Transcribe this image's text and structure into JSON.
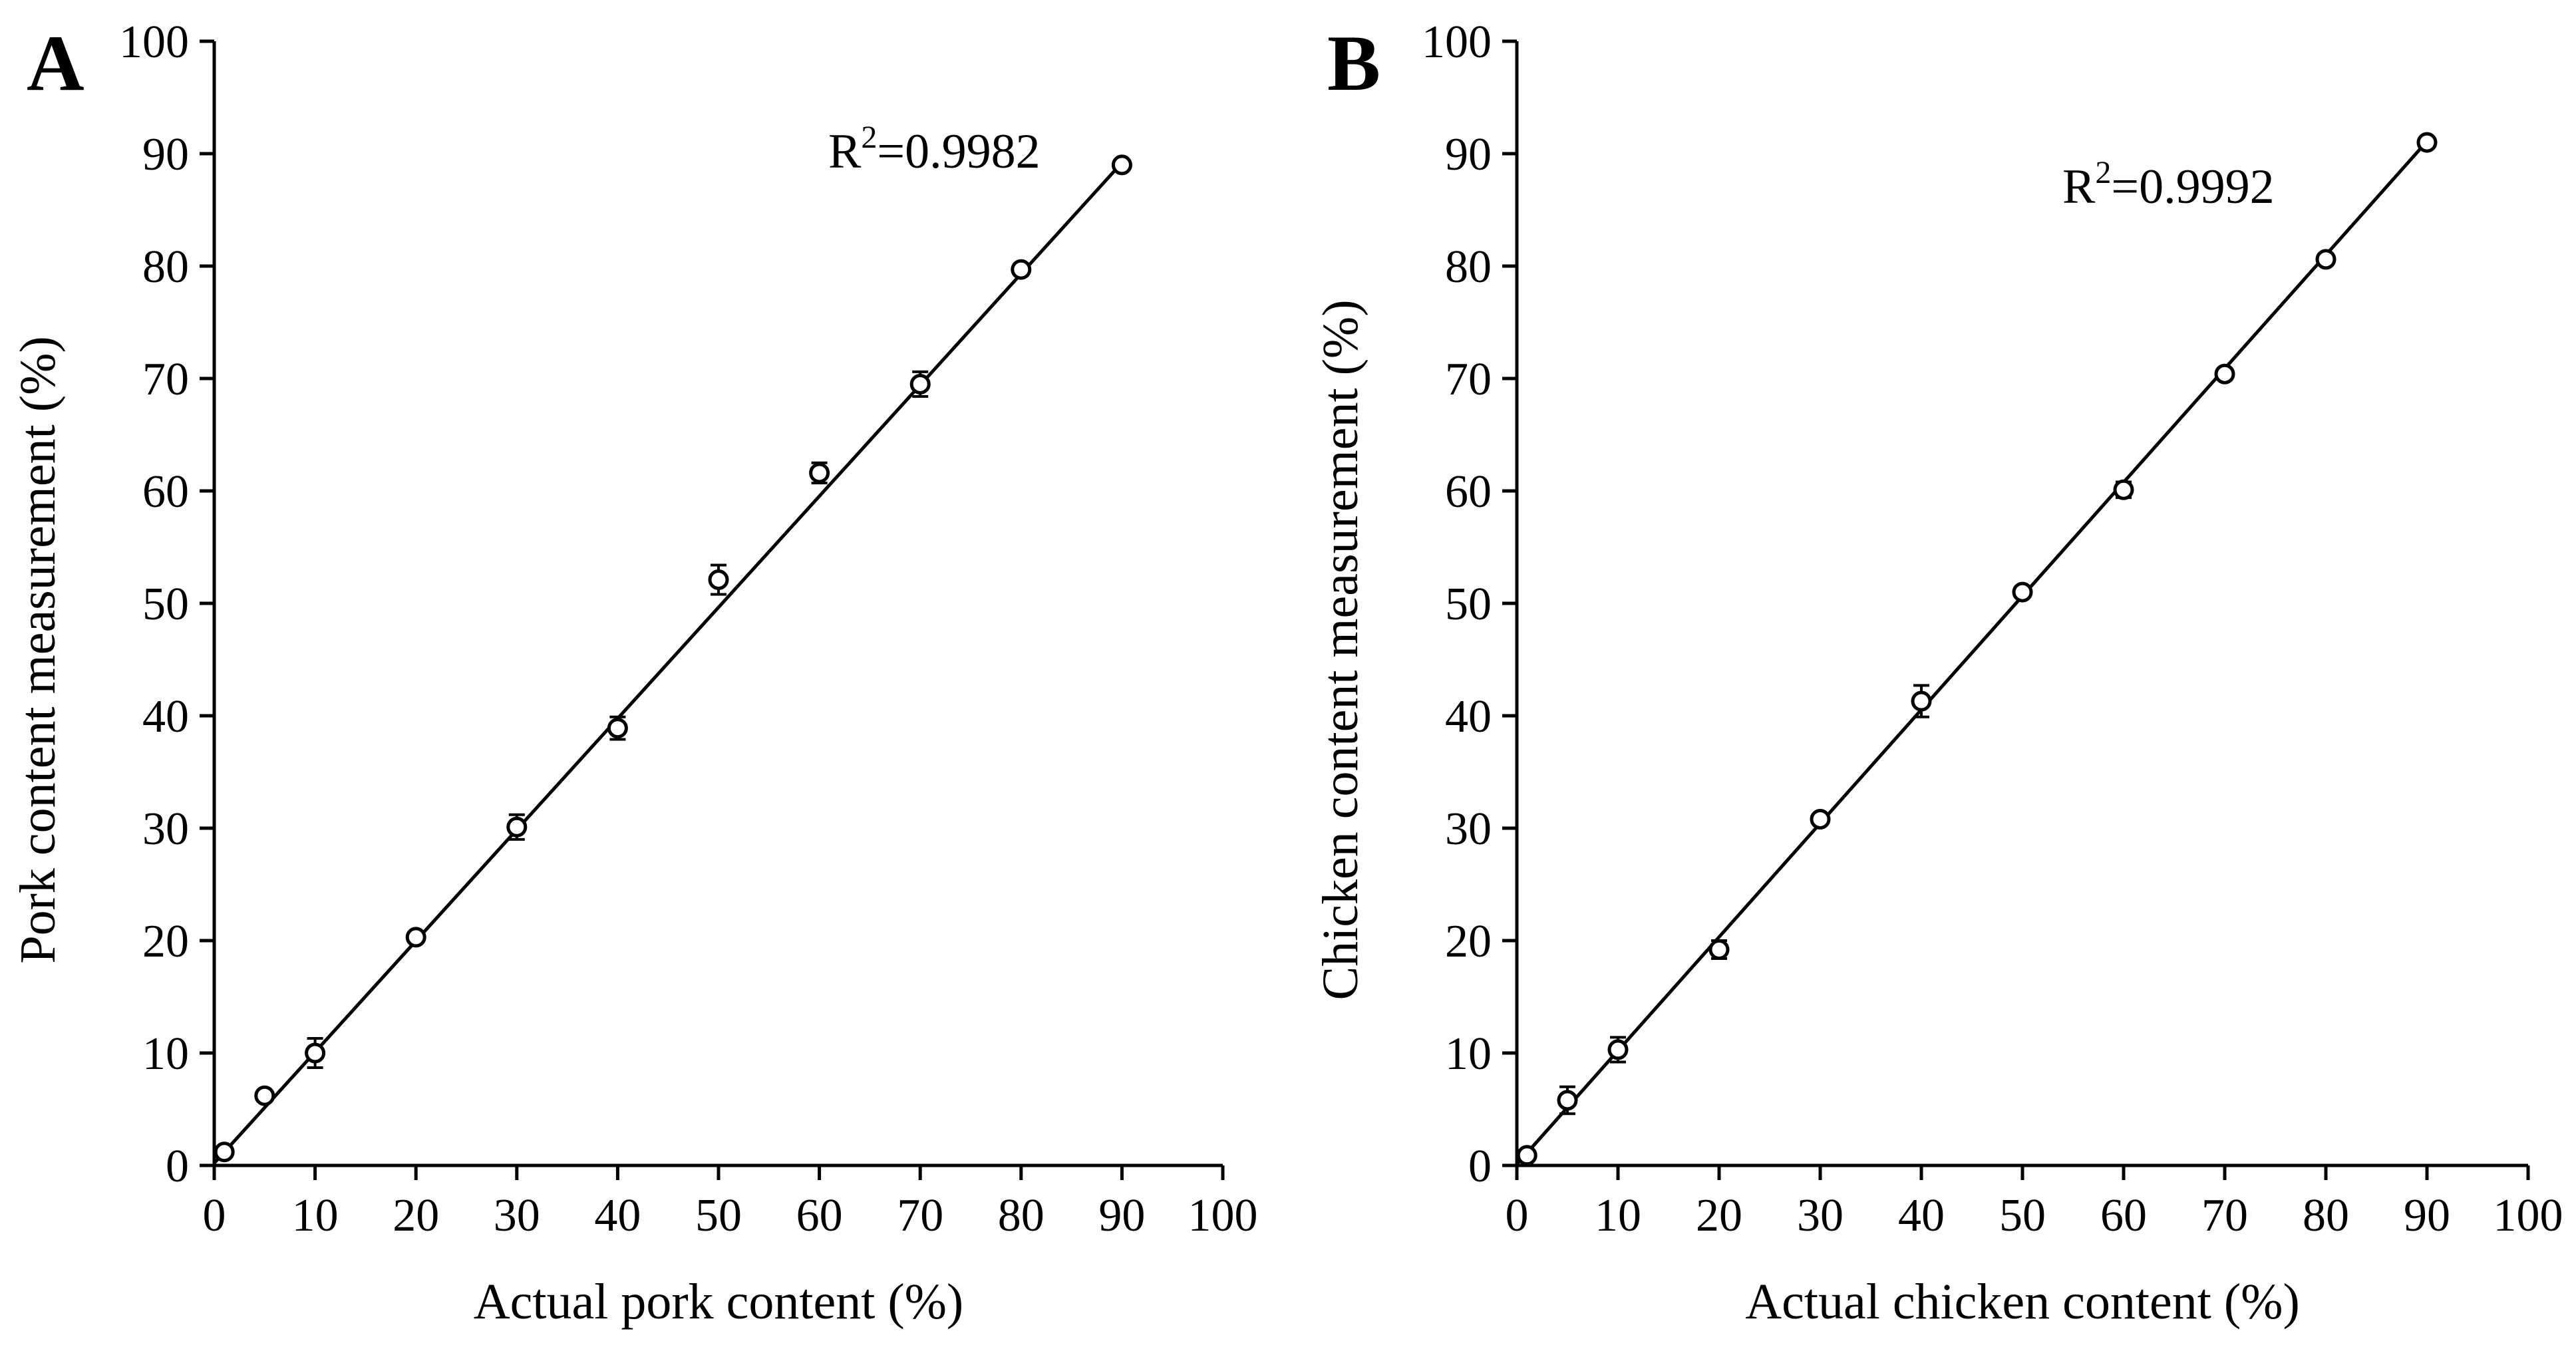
{
  "chart_data": [
    {
      "type": "scatter",
      "panel_label": "A",
      "xlabel": "Actual pork content (%)",
      "ylabel": "Pork content measurement (%)",
      "xlim": [
        0,
        100
      ],
      "ylim": [
        0,
        100
      ],
      "xticks": [
        "0",
        "10",
        "20",
        "30",
        "40",
        "50",
        "60",
        "70",
        "80",
        "90",
        "100"
      ],
      "yticks": [
        "0",
        "10",
        "20",
        "30",
        "40",
        "50",
        "60",
        "70",
        "80",
        "90",
        "100"
      ],
      "x": [
        1,
        5,
        10,
        20,
        30,
        40,
        50,
        60,
        70,
        80,
        90
      ],
      "y": [
        1.2,
        6.2,
        10.0,
        20.3,
        30.1,
        38.9,
        52.1,
        61.6,
        69.5,
        79.7,
        89.0
      ],
      "error": [
        0.3,
        0.3,
        1.3,
        0.4,
        1.1,
        1.0,
        1.3,
        0.9,
        1.1,
        0.5,
        0.3
      ],
      "fit_line": {
        "x": [
          0,
          90
        ],
        "y": [
          0.2,
          89.2
        ]
      },
      "annotation": {
        "prefix": "R",
        "superscript": "2",
        "value": "=0.9982"
      }
    },
    {
      "type": "scatter",
      "panel_label": "B",
      "xlabel": "Actual chicken content (%)",
      "ylabel": "Chicken content measurement (%)",
      "xlim": [
        0,
        100
      ],
      "ylim": [
        0,
        100
      ],
      "xticks": [
        "0",
        "10",
        "20",
        "30",
        "40",
        "50",
        "60",
        "70",
        "80",
        "90",
        "100"
      ],
      "yticks": [
        "0",
        "10",
        "20",
        "30",
        "40",
        "50",
        "60",
        "70",
        "80",
        "90",
        "100"
      ],
      "x": [
        1,
        5,
        10,
        20,
        30,
        40,
        50,
        60,
        70,
        80,
        90
      ],
      "y": [
        0.9,
        5.8,
        10.3,
        19.2,
        30.8,
        41.3,
        51.0,
        60.1,
        70.4,
        80.6,
        91.0
      ],
      "error": [
        0.3,
        1.2,
        1.1,
        0.8,
        0.4,
        1.4,
        0.3,
        0.7,
        0.3,
        0.3,
        0.3
      ],
      "fit_line": {
        "x": [
          0,
          90
        ],
        "y": [
          0.1,
          91.1
        ]
      },
      "annotation": {
        "prefix": "R",
        "superscript": "2",
        "value": "=0.9992"
      }
    }
  ]
}
